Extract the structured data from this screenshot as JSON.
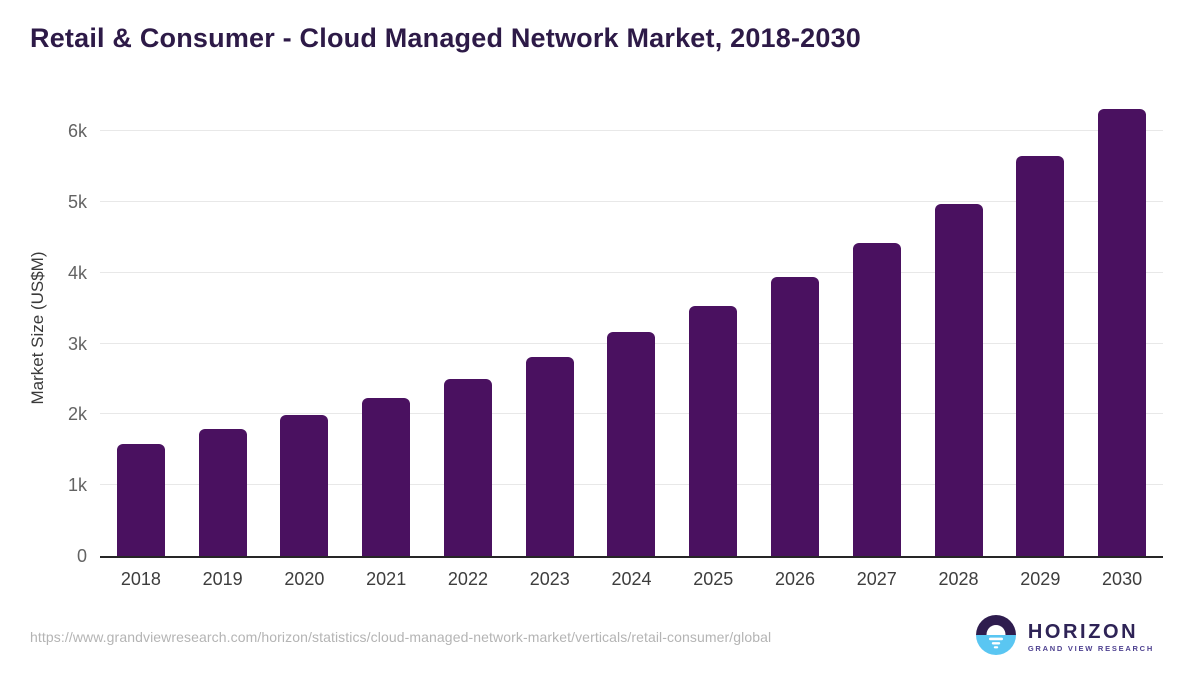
{
  "header": {
    "title": "Retail & Consumer - Cloud Managed Network Market, 2018-2030"
  },
  "chart_data": {
    "type": "bar",
    "title": "Retail & Consumer - Cloud Managed Network Market, 2018-2030",
    "categories": [
      "2018",
      "2019",
      "2020",
      "2021",
      "2022",
      "2023",
      "2024",
      "2025",
      "2026",
      "2027",
      "2028",
      "2029",
      "2030"
    ],
    "values": [
      1590,
      1790,
      2000,
      2230,
      2500,
      2810,
      3170,
      3540,
      3950,
      4430,
      4970,
      5650,
      6310
    ],
    "xlabel": "",
    "ylabel": "Market Size (US$M)",
    "ylim": [
      0,
      6500
    ],
    "yticks": {
      "values": [
        0,
        1000,
        2000,
        3000,
        4000,
        5000,
        6000
      ],
      "labels": [
        "0",
        "1k",
        "2k",
        "3k",
        "4k",
        "5k",
        "6k"
      ]
    },
    "grid": "horizontal",
    "legend": "none",
    "bar_color": "#4a1160"
  },
  "footer": {
    "source_url": "https://www.grandviewresearch.com/horizon/statistics/cloud-managed-network-market/verticals/retail-consumer/global",
    "logo": {
      "icon": "horizon-sun-over-water-icon",
      "name": "HORIZON",
      "tagline": "GRAND VIEW RESEARCH"
    }
  },
  "colors": {
    "bar_purple": "#4a1160",
    "title_purple": "#2d1a47",
    "logo_dark_purple": "#2e1c4e",
    "logo_light_blue": "#5ac6f2",
    "axis_label_gray": "#3d3d3d",
    "ytick_gray": "#636363",
    "gridline_gray": "#e8e8e8",
    "source_text_gray": "#b4b4b4"
  }
}
